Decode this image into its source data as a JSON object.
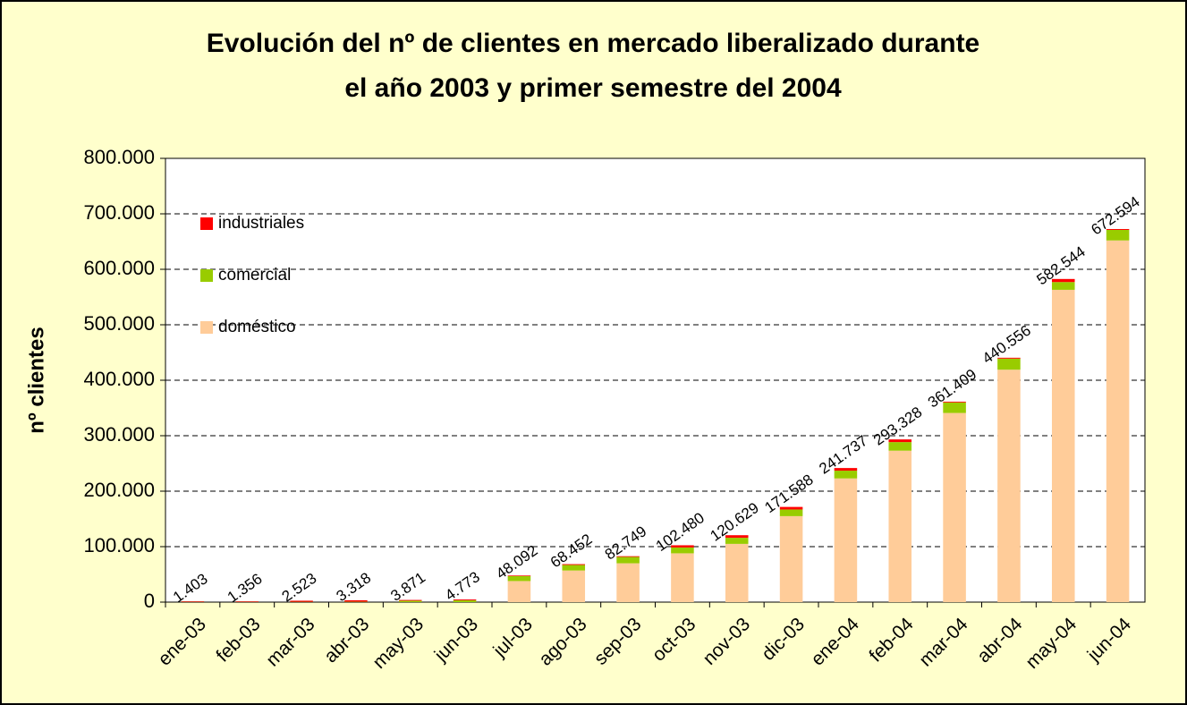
{
  "chart_data": {
    "type": "stacked_bar",
    "title": "Evolución del nº de clientes en mercado liberalizado durante el año 2003 y primer semestre del 2004",
    "y_label": "nº clientes",
    "categories": [
      "ene-03",
      "feb-03",
      "mar-03",
      "abr-03",
      "may-03",
      "jun-03",
      "jul-03",
      "ago-03",
      "sep-03",
      "oct-03",
      "nov-03",
      "dic-03",
      "ene-04",
      "feb-04",
      "mar-04",
      "abr-04",
      "may-04",
      "jun-04"
    ],
    "series": [
      {
        "name": "doméstico",
        "color": "#ffcc99",
        "values": [
          0,
          0,
          0,
          0,
          0,
          0,
          38000,
          57000,
          70000,
          88000,
          105000,
          155000,
          223000,
          273000,
          341000,
          419000,
          563000,
          652000
        ]
      },
      {
        "name": "comercial",
        "color": "#99cc00",
        "values": [
          400,
          350,
          500,
          700,
          2500,
          3300,
          9000,
          10000,
          11500,
          10500,
          11000,
          12000,
          14000,
          15500,
          19000,
          20000,
          14000,
          19000
        ]
      },
      {
        "name": "industriales",
        "color": "#ff0000",
        "values": [
          1003,
          1006,
          2023,
          2618,
          1371,
          1473,
          1092,
          1452,
          1249,
          3980,
          4629,
          4588,
          4737,
          4828,
          1409,
          1556,
          5544,
          1594
        ]
      }
    ],
    "totals": [
      1403,
      1356,
      2523,
      3318,
      3871,
      4773,
      48092,
      68452,
      82749,
      102480,
      120629,
      171588,
      241737,
      293328,
      361409,
      440556,
      582544,
      672594
    ],
    "value_labels": [
      "1.403",
      "1.356",
      "2.523",
      "3.318",
      "3.871",
      "4.773",
      "48.092",
      "68.452",
      "82.749",
      "102.480",
      "120.629",
      "171.588",
      "241.737",
      "293.328",
      "361.409",
      "440.556",
      "582.544",
      "672.594"
    ],
    "ylim": [
      0,
      800000
    ],
    "yticks": [
      0,
      {
        "value": 100000,
        "label": "100.000"
      },
      {
        "value": 200000,
        "label": "200.000"
      },
      {
        "value": 300000,
        "label": "300.000"
      },
      {
        "value": 400000,
        "label": "400.000"
      },
      {
        "value": 500000,
        "label": "500.000"
      },
      {
        "value": 600000,
        "label": "600.000"
      },
      {
        "value": 700000,
        "label": "700.000"
      },
      {
        "value": 800000,
        "label": "800.000"
      }
    ],
    "grid": true,
    "legend": "upper left"
  }
}
